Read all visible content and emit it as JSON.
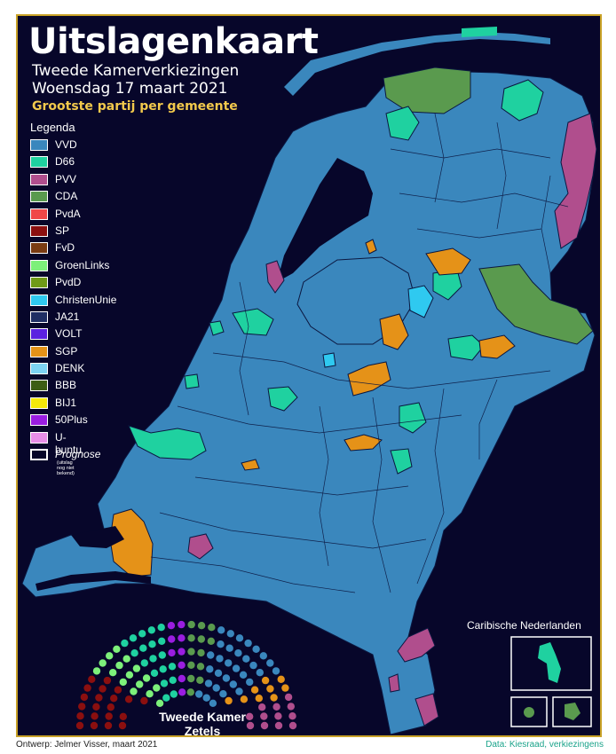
{
  "title": "Uitslagenkaart",
  "subtitle_line1": "Tweede Kamerverkiezingen",
  "subtitle_line2": "Woensdag 17 maart 2021",
  "subtitle_line3": "Grootste partij per gemeente",
  "legend": {
    "title": "Legenda",
    "items": [
      {
        "label": "VVD",
        "color": "#3a87bd"
      },
      {
        "label": "D66",
        "color": "#1fd1a0"
      },
      {
        "label": "PVV",
        "color": "#b04e8d"
      },
      {
        "label": "CDA",
        "color": "#5a9a4e"
      },
      {
        "label": "PvdA",
        "color": "#f04747"
      },
      {
        "label": "SP",
        "color": "#8b0f0f"
      },
      {
        "label": "FvD",
        "color": "#7a3b12"
      },
      {
        "label": "GroenLinks",
        "color": "#7df07a"
      },
      {
        "label": "PvdD",
        "color": "#6f9a17"
      },
      {
        "label": "ChristenUnie",
        "color": "#2fc9f0"
      },
      {
        "label": "JA21",
        "color": "#1f2e63"
      },
      {
        "label": "VOLT",
        "color": "#5b21e0"
      },
      {
        "label": "SGP",
        "color": "#e59218"
      },
      {
        "label": "DENK",
        "color": "#7dd3f2"
      },
      {
        "label": "BBB",
        "color": "#3d5e14"
      },
      {
        "label": "BIJ1",
        "color": "#f5e90a"
      },
      {
        "label": "50Plus",
        "color": "#9a1de0"
      },
      {
        "label": "U-buntu",
        "color": "#e88ee8"
      }
    ],
    "prognose_label": "Prognose",
    "prognose_note": "(uitslag nog niet bekend)"
  },
  "caribbean_title": "Caribische Nederlanden",
  "seats_label_line1": "Tweede Kamer",
  "seats_label_line2": "Zetels",
  "footer_left": "Ontwerp: Jelmer Visser, maart 2021",
  "footer_right": "Data: Kiesraad, verkiezingens",
  "colors": {
    "background": "#07062a",
    "frame": "#c9a227",
    "vvd": "#3a87bd",
    "d66": "#1fd1a0",
    "pvv": "#b04e8d",
    "cda": "#5a9a4e",
    "sgp": "#e59218",
    "christenunie": "#2fc9f0"
  }
}
